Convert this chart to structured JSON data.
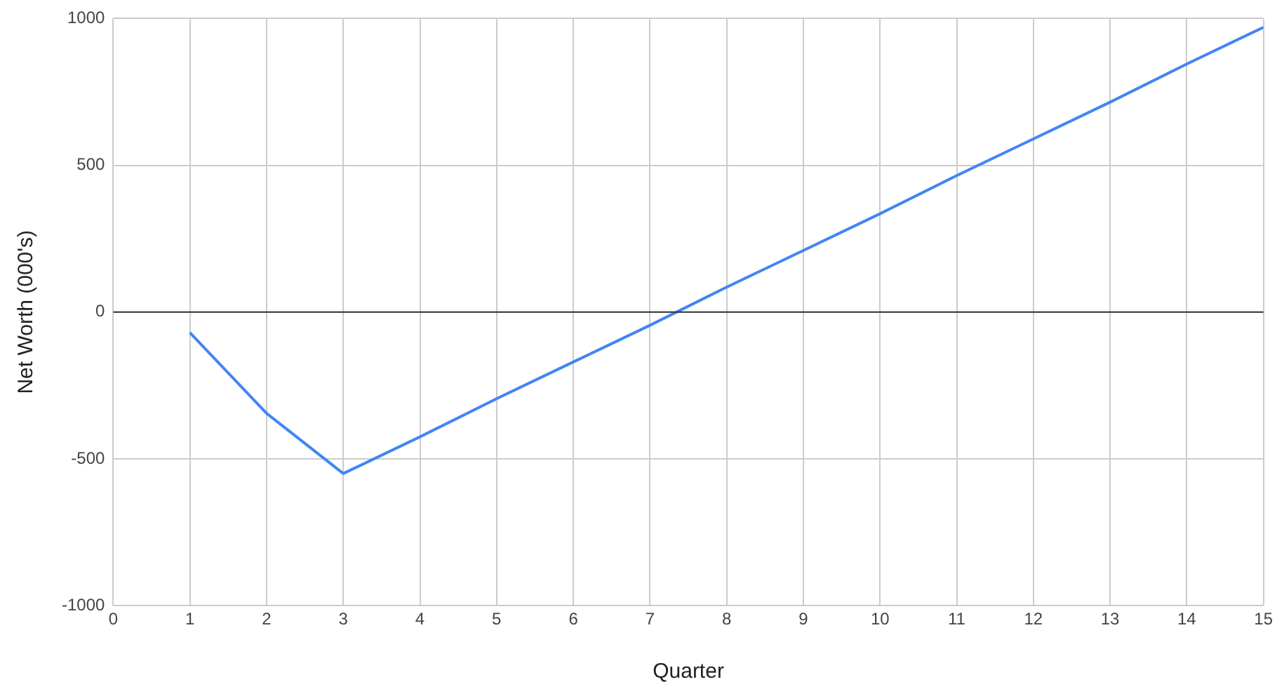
{
  "chart_data": {
    "type": "line",
    "xlabel": "Quarter",
    "ylabel": "Net Worth (000's)",
    "x": [
      1,
      2,
      3,
      4,
      5,
      6,
      7,
      8,
      9,
      10,
      11,
      12,
      13,
      14,
      15
    ],
    "series": [
      {
        "color": "#4285f4",
        "values": [
          -70,
          -345,
          -550,
          -425,
          -295,
          -170,
          -45,
          85,
          210,
          335,
          465,
          590,
          715,
          845,
          970
        ]
      }
    ],
    "xlim": [
      0,
      15
    ],
    "xticks": [
      0,
      1,
      2,
      3,
      4,
      5,
      6,
      7,
      8,
      9,
      10,
      11,
      12,
      13,
      14,
      15
    ],
    "ylim": [
      -1000,
      1000
    ],
    "yticks": [
      -1000,
      -500,
      0,
      500,
      1000
    ],
    "ref_lines": [
      {
        "axis": "y",
        "value": 0,
        "color": "#333333"
      }
    ],
    "grid": true,
    "legend": false,
    "marker": "none",
    "line_style": "solid"
  }
}
